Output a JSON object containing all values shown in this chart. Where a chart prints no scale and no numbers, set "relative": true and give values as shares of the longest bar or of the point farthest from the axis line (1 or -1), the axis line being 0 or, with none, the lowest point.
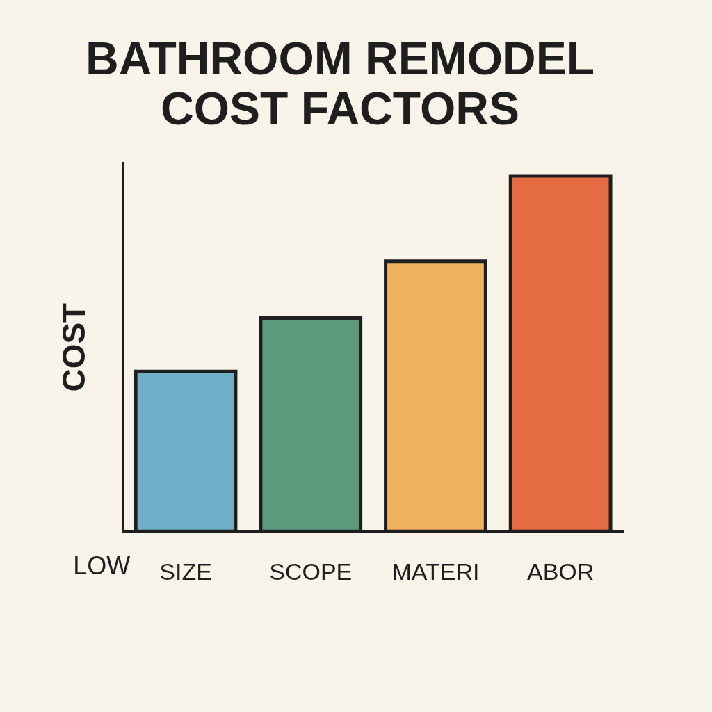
{
  "chart_data": {
    "type": "bar",
    "title": "BATHROOM REMODEL COST FACTORS",
    "ylabel": "COST",
    "categories": [
      "SIZE",
      "SCOPE",
      "MATERI",
      "ABOR"
    ],
    "values": [
      0.45,
      0.6,
      0.76,
      1
    ],
    "colors": [
      "#6fb0c8",
      "#5c9a7e",
      "#f0b25d",
      "#e56b43"
    ],
    "relative": true,
    "annotations": [
      "LOW"
    ]
  }
}
